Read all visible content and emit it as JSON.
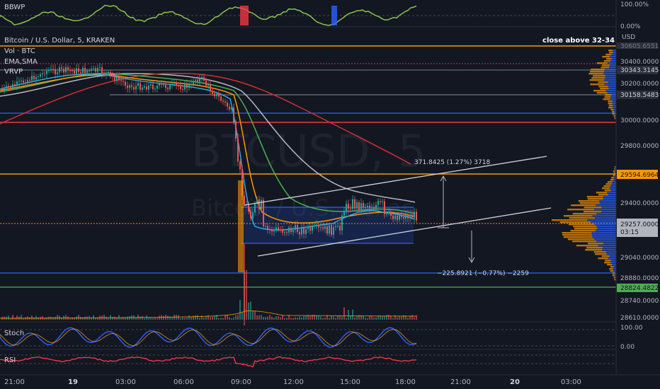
{
  "panels": {
    "bbwp": {
      "label": "BBWP",
      "ticks": [
        "100.00%",
        "0.00%"
      ]
    },
    "stoch": {
      "label": "Stoch",
      "ticks": [
        "100.00",
        "0.00"
      ]
    },
    "rsi": {
      "label": "RSI"
    }
  },
  "header": {
    "symbol_title": "Bitcoin / U.S. Dollar, 5, KRAKEN",
    "note": "close above 32-34",
    "currency": "USD",
    "indicators": [
      "Vol · BTC",
      "EMA,SMA",
      "VRVP"
    ]
  },
  "watermark": {
    "ticker": "BTCUSD, 5",
    "name": "Bitcoin / U.S. Dollar"
  },
  "measurements": {
    "up": "371.8425 (1.27%) 3718",
    "down": "−225.8921 (−0.77%) −2259"
  },
  "price_axis": {
    "ticks": [
      "30400.0000",
      "30200.0000",
      "30000.0000",
      "29800.0000",
      "29400.0000",
      "29040.0000",
      "28880.0000",
      "28740.0000",
      "28610.0000"
    ],
    "labels": [
      {
        "text": "30343.3145",
        "color": "#2a2e39"
      },
      {
        "text": "30158.5483",
        "color": "#2a2e39"
      },
      {
        "text": "29594.6964",
        "color": "#ff9800"
      },
      {
        "text": "29257.0000",
        "color": "#b2b5be"
      },
      {
        "text": "28824.4822",
        "color": "#4caf50"
      }
    ],
    "countdown": "03:15",
    "top_cut": "30605.6551"
  },
  "time_axis": {
    "ticks": [
      "21:00",
      "19",
      "03:00",
      "06:00",
      "09:00",
      "12:00",
      "15:00",
      "18:00",
      "21:00",
      "20",
      "03:00"
    ]
  },
  "colors": {
    "background": "#131722",
    "up": "#26a69a",
    "down": "#ef5350",
    "orange_line": "#ff9800",
    "red_line": "#f23645",
    "blue_line": "#2962ff",
    "green_line": "#4caf50"
  }
}
